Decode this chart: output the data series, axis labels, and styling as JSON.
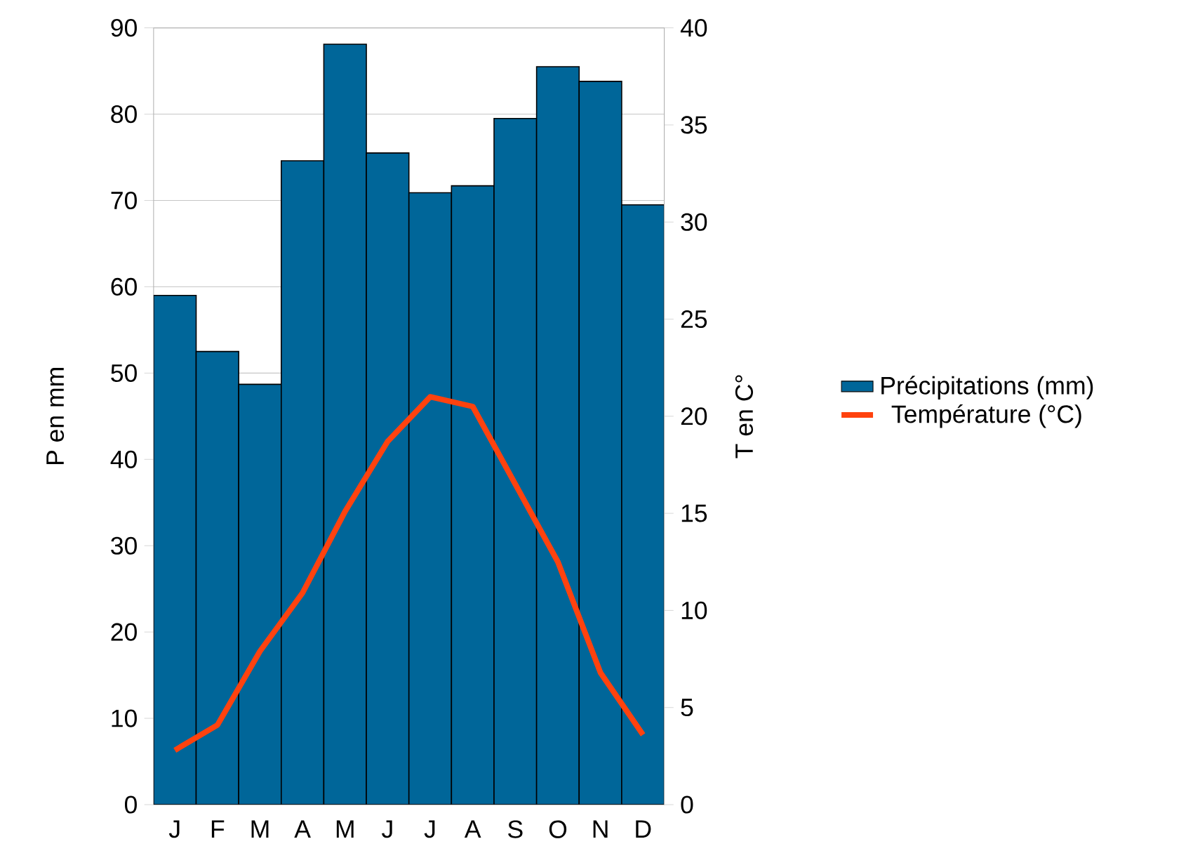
{
  "chart_data": {
    "type": "bar",
    "categories": [
      "J",
      "F",
      "M",
      "A",
      "M",
      "J",
      "J",
      "A",
      "S",
      "O",
      "N",
      "D"
    ],
    "series": [
      {
        "name": "Précipitations (mm)",
        "color": "#006699",
        "values": [
          59.0,
          52.5,
          48.7,
          74.6,
          88.1,
          75.5,
          70.9,
          71.7,
          79.5,
          85.5,
          83.8,
          69.5
        ]
      },
      {
        "name": "Température (°C)",
        "type": "line",
        "axis": "y2",
        "color": "#ff420e",
        "values": [
          2.8,
          4.1,
          7.9,
          10.9,
          15.1,
          18.7,
          21.0,
          20.5,
          16.5,
          12.5,
          6.8,
          3.6
        ]
      }
    ],
    "ylabel": "P en mm",
    "y2label": "T en C°",
    "ylim": [
      0,
      90
    ],
    "yticks": [
      0,
      10,
      20,
      30,
      40,
      50,
      60,
      70,
      80,
      90
    ],
    "y2lim": [
      0,
      40
    ],
    "y2ticks": [
      0,
      5,
      10,
      15,
      20,
      25,
      30,
      35,
      40
    ],
    "grid": "y",
    "legend": "right"
  }
}
